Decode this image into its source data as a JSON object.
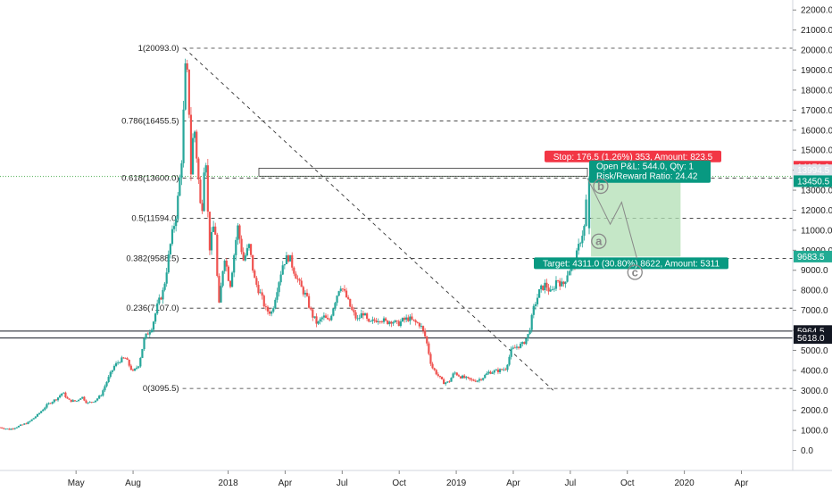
{
  "chart_data": {
    "type": "candlestick",
    "y_axis": {
      "range": [
        -1000,
        22500
      ],
      "ticks": [
        0.0,
        1000.0,
        2000.0,
        3000.0,
        4000.0,
        5000.0,
        6000.0,
        7000.0,
        8000.0,
        9000.0,
        10000.0,
        11000.0,
        12000.0,
        13000.0,
        14000.0,
        15000.0,
        16000.0,
        17000.0,
        18000.0,
        19000.0,
        20000.0,
        21000.0,
        22000.0
      ],
      "tick_labels": [
        "0.0",
        "1000.0",
        "2000.0",
        "3000.0",
        "4000.0",
        "5000.0",
        "6000.0",
        "7000.0",
        "8000.0",
        "9000.0",
        "10000.0",
        "11000.0",
        "12000.0",
        "13000.0",
        "14000.0",
        "15000.0",
        "16000.0",
        "17000.0",
        "18000.0",
        "19000.0",
        "20000.0",
        "21000.0",
        "22000.0"
      ]
    },
    "x_axis": {
      "labels": [
        "May",
        "Aug",
        "2018",
        "Apr",
        "Jul",
        "Oct",
        "2019",
        "Apr",
        "Jul",
        "Oct",
        "2020",
        "Apr"
      ],
      "label_months": [
        4,
        7,
        12,
        15,
        18,
        21,
        24,
        27,
        30,
        33,
        36,
        39
      ],
      "range_months": [
        0,
        41.7
      ],
      "note": "month index 0 = 2017-04-01"
    },
    "price_path": [
      [
        0.0,
        1150
      ],
      [
        0.5,
        1050
      ],
      [
        1.0,
        1220
      ],
      [
        1.5,
        1400
      ],
      [
        2.0,
        1800
      ],
      [
        2.5,
        2300
      ],
      [
        3.0,
        2600
      ],
      [
        3.3,
        2900
      ],
      [
        3.6,
        2500
      ],
      [
        4.0,
        2450
      ],
      [
        4.3,
        2700
      ],
      [
        4.6,
        2350
      ],
      [
        5.0,
        2500
      ],
      [
        5.3,
        2750
      ],
      [
        5.6,
        3400
      ],
      [
        6.0,
        4200
      ],
      [
        6.3,
        4500
      ],
      [
        6.6,
        4600
      ],
      [
        7.0,
        3900
      ],
      [
        7.3,
        4300
      ],
      [
        7.6,
        5600
      ],
      [
        8.0,
        6200
      ],
      [
        8.3,
        7300
      ],
      [
        8.6,
        8000
      ],
      [
        9.0,
        10500
      ],
      [
        9.3,
        12000
      ],
      [
        9.55,
        14500
      ],
      [
        9.75,
        19000
      ],
      [
        9.9,
        18500
      ],
      [
        10.05,
        13800
      ],
      [
        10.2,
        16500
      ],
      [
        10.4,
        14000
      ],
      [
        10.6,
        11500
      ],
      [
        10.8,
        15500
      ],
      [
        11.0,
        10000
      ],
      [
        11.3,
        11500
      ],
      [
        11.5,
        7000
      ],
      [
        11.8,
        9800
      ],
      [
        12.1,
        8200
      ],
      [
        12.5,
        11200
      ],
      [
        12.8,
        9500
      ],
      [
        13.1,
        10200
      ],
      [
        13.4,
        8500
      ],
      [
        13.7,
        7800
      ],
      [
        14.0,
        7000
      ],
      [
        14.3,
        6900
      ],
      [
        14.6,
        8200
      ],
      [
        14.9,
        9400
      ],
      [
        15.2,
        9700
      ],
      [
        15.5,
        8900
      ],
      [
        15.8,
        8200
      ],
      [
        16.1,
        7700
      ],
      [
        16.4,
        6800
      ],
      [
        16.7,
        6300
      ],
      [
        17.0,
        6700
      ],
      [
        17.3,
        6400
      ],
      [
        17.6,
        7400
      ],
      [
        17.9,
        8300
      ],
      [
        18.2,
        7700
      ],
      [
        18.5,
        7000
      ],
      [
        18.8,
        6500
      ],
      [
        19.1,
        6900
      ],
      [
        19.4,
        6300
      ],
      [
        19.7,
        6500
      ],
      [
        20.0,
        6600
      ],
      [
        20.3,
        6400
      ],
      [
        20.6,
        6500
      ],
      [
        20.9,
        6300
      ],
      [
        21.2,
        6500
      ],
      [
        21.5,
        6600
      ],
      [
        21.8,
        6400
      ],
      [
        22.1,
        6300
      ],
      [
        22.4,
        5600
      ],
      [
        22.7,
        4200
      ],
      [
        23.0,
        3800
      ],
      [
        23.3,
        3400
      ],
      [
        23.6,
        3400
      ],
      [
        23.9,
        3900
      ],
      [
        24.2,
        3700
      ],
      [
        24.5,
        3600
      ],
      [
        24.8,
        3500
      ],
      [
        25.1,
        3500
      ],
      [
        25.4,
        3650
      ],
      [
        25.7,
        3900
      ],
      [
        26.0,
        3950
      ],
      [
        26.3,
        4000
      ],
      [
        26.6,
        4100
      ],
      [
        26.9,
        5000
      ],
      [
        27.2,
        5200
      ],
      [
        27.5,
        5300
      ],
      [
        27.8,
        5800
      ],
      [
        28.1,
        7200
      ],
      [
        28.4,
        8000
      ],
      [
        28.7,
        8300
      ],
      [
        29.0,
        7800
      ],
      [
        29.3,
        8600
      ],
      [
        29.6,
        8200
      ],
      [
        29.9,
        9000
      ],
      [
        30.2,
        9300
      ],
      [
        30.35,
        9800
      ],
      [
        30.55,
        10600
      ],
      [
        30.75,
        11200
      ],
      [
        30.9,
        13500
      ]
    ],
    "fib_levels": [
      {
        "label": "1(20093.0)",
        "value": 20093.0
      },
      {
        "label": "0.786(16455.5)",
        "value": 16455.5
      },
      {
        "label": "0.618(13600.0)",
        "value": 13600.0
      },
      {
        "label": "0.5(11594.0)",
        "value": 11594.0
      },
      {
        "label": "0.382(9588.5)",
        "value": 9588.5
      },
      {
        "label": "0.236(7107.0)",
        "value": 7107.0
      },
      {
        "label": "0(3095.5)",
        "value": 3095.5
      }
    ],
    "support_lines": [
      5964.5,
      5618.0
    ],
    "price_tags": [
      {
        "text": "14171.0",
        "value": 14171.0,
        "color": "#f23645"
      },
      {
        "text": "13994.5",
        "value": 13994.5,
        "color": "#e0e3eb",
        "text_color": "#222222"
      },
      {
        "text": "13450.5",
        "value": 13450.5,
        "color": "#089981"
      },
      {
        "text": "9683.5",
        "value": 9683.5,
        "color": "#22ab94"
      },
      {
        "text": "5964.5",
        "value": 5964.5,
        "color": "#131722"
      },
      {
        "text": "5618.0",
        "value": 5618.0,
        "color": "#131722"
      }
    ],
    "position": {
      "entry": 13994.5,
      "stop": 14171.0,
      "target": 9683.5,
      "start_month": 30.9,
      "end_month": 35.8,
      "stop_label": "Stop: 176.5 (1.26%) 353, Amount: 823.5",
      "pnl_label": "Open P&L: 544.0, Qty: 1",
      "rr_label": "Risk/Reward Ratio: 24.42",
      "target_label": "Target: 4311.0 (30.80%) 8622, Amount: 5311"
    },
    "waves": [
      {
        "label": "b",
        "month": 31.6,
        "value": 13200
      },
      {
        "label": "a",
        "month": 31.5,
        "value": 10450
      },
      {
        "label": "c",
        "month": 33.4,
        "value": 8900
      }
    ],
    "wave_path": [
      [
        30.9,
        13600
      ],
      [
        32.1,
        11300
      ],
      [
        32.7,
        12400
      ],
      [
        33.5,
        9600
      ]
    ],
    "diagonal_line": {
      "from": [
        9.7,
        20093.0
      ],
      "to": [
        29.1,
        3095.5
      ]
    },
    "green_dotted_level": 13600.0,
    "colors": {
      "up": "#26a69a",
      "down": "#ef5350",
      "profit_zone": "#b2dfb4",
      "loss_zone": "#ffffff"
    }
  }
}
